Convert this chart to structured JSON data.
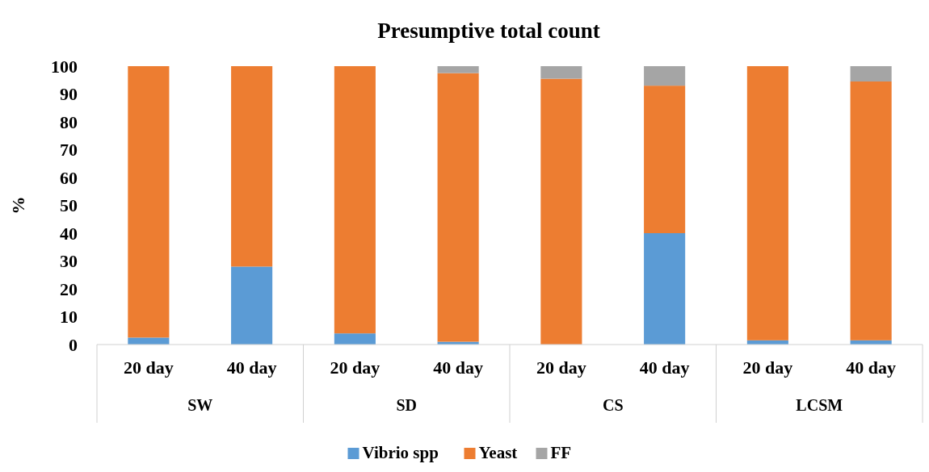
{
  "chart_data": {
    "type": "bar",
    "title": "Presumptive total count",
    "ylabel": "%",
    "stacked": true,
    "categories": [
      "20 day",
      "40 day",
      "20 day",
      "40 day",
      "20 day",
      "40 day",
      "20 day",
      "40 day"
    ],
    "annotations": [
      "SW",
      "SD",
      "CS",
      "LCSM"
    ],
    "series": [
      {
        "name": "Vibrio spp",
        "color": "#5b9bd5",
        "values": [
          2.5,
          28,
          4,
          1,
          0,
          40,
          1.5,
          1.5
        ]
      },
      {
        "name": "Yeast",
        "color": "#ed7d31",
        "values": [
          97.5,
          72,
          96,
          96.5,
          95.5,
          53,
          98.5,
          93
        ]
      },
      {
        "name": "FF",
        "color": "#a5a5a5",
        "values": [
          0,
          0,
          0,
          2.5,
          4.5,
          7,
          0,
          5.5
        ]
      }
    ],
    "ylim": [
      0,
      100
    ],
    "yticks": [
      0,
      10,
      20,
      30,
      40,
      50,
      60,
      70,
      80,
      90,
      100
    ],
    "grid": false,
    "legend": "bottom"
  }
}
